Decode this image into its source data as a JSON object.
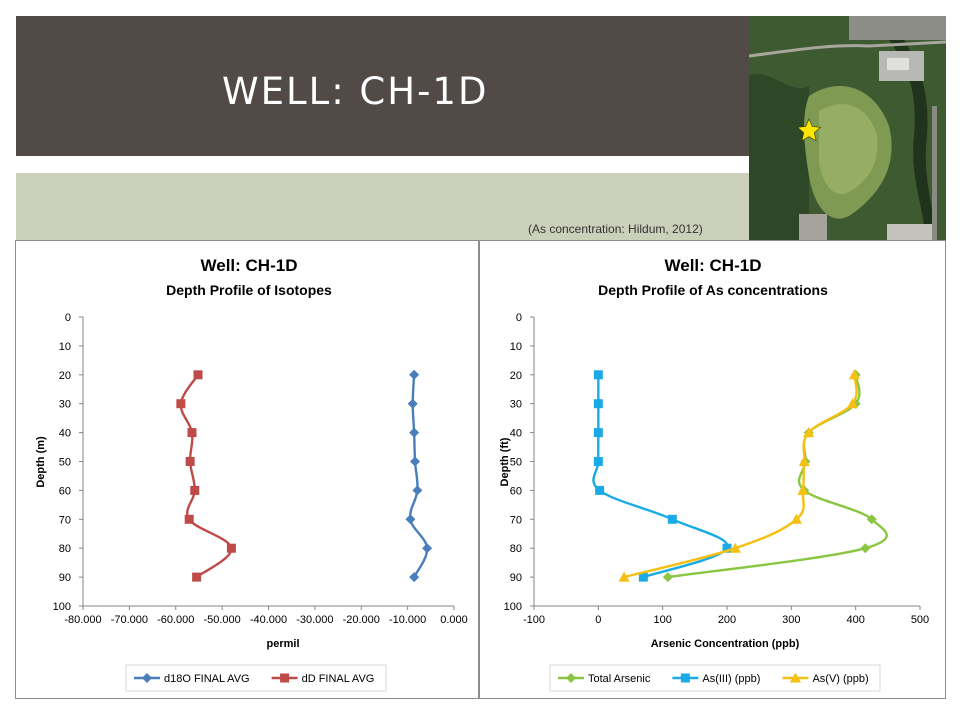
{
  "slide": {
    "title": "WELL: CH-1D",
    "citation": "(As concentration: Hildum, 2012)"
  },
  "colors": {
    "title_bar": "#514a47",
    "band": "#cbd0bb",
    "star": "#ffe600"
  },
  "map": {
    "icon": "star-icon"
  },
  "chart_data": [
    {
      "type": "line",
      "title": "Well: CH-1D",
      "subtitle": "Depth Profile of Isotopes",
      "xlabel": "permil",
      "ylabel": "Depth (m)",
      "xlim": [
        -80,
        0
      ],
      "ylim": [
        0,
        100
      ],
      "y_inverted": true,
      "x_ticks": [
        "-80.000",
        "-70.000",
        "-60.000",
        "-50.000",
        "-40.000",
        "-30.000",
        "-20.000",
        "-10.000",
        "0.000"
      ],
      "y_ticks": [
        "0",
        "10",
        "20",
        "30",
        "40",
        "50",
        "60",
        "70",
        "80",
        "90",
        "100"
      ],
      "legend_position": "bottom",
      "series": [
        {
          "name": "d18O FINAL AVG",
          "color": "#4a7ebb",
          "marker": "diamond",
          "points": [
            [
              -8.6,
              20
            ],
            [
              -8.9,
              30
            ],
            [
              -8.6,
              40
            ],
            [
              -8.4,
              50
            ],
            [
              -7.9,
              60
            ],
            [
              -9.4,
              70
            ],
            [
              -5.8,
              80
            ],
            [
              -8.6,
              90
            ]
          ]
        },
        {
          "name": "dD FINAL AVG",
          "color": "#be4b48",
          "marker": "square",
          "points": [
            [
              -55.2,
              20
            ],
            [
              -58.9,
              30
            ],
            [
              -56.5,
              40
            ],
            [
              -56.9,
              50
            ],
            [
              -55.9,
              60
            ],
            [
              -57.1,
              70
            ],
            [
              -48.0,
              80
            ],
            [
              -55.5,
              90
            ]
          ]
        }
      ]
    },
    {
      "type": "line",
      "title": "Well: CH-1D",
      "subtitle": "Depth Profile of As concentrations",
      "xlabel": "Arsenic Concentration (ppb)",
      "ylabel": "Depth (ft)",
      "xlim": [
        -100,
        500
      ],
      "ylim": [
        0,
        100
      ],
      "y_inverted": true,
      "x_ticks": [
        "-100",
        "0",
        "100",
        "200",
        "300",
        "400",
        "500"
      ],
      "y_ticks": [
        "0",
        "10",
        "20",
        "30",
        "40",
        "50",
        "60",
        "70",
        "80",
        "90",
        "100"
      ],
      "legend_position": "bottom",
      "series": [
        {
          "name": "Total Arsenic",
          "color": "#8ac641",
          "marker": "diamond",
          "points": [
            [
              400,
              20
            ],
            [
              400,
              30
            ],
            [
              327,
              40
            ],
            [
              322,
              50
            ],
            [
              320,
              60
            ],
            [
              425,
              70
            ],
            [
              415,
              80
            ],
            [
              108,
              90
            ]
          ]
        },
        {
          "name": "As(III) (ppb)",
          "color": "#1aabe6",
          "marker": "square",
          "points": [
            [
              0,
              20
            ],
            [
              0,
              30
            ],
            [
              0,
              40
            ],
            [
              0,
              50
            ],
            [
              2,
              60
            ],
            [
              115,
              70
            ],
            [
              200,
              80
            ],
            [
              70,
              90
            ]
          ]
        },
        {
          "name": "As(V) (ppb)",
          "color": "#f5c011",
          "marker": "triangle",
          "points": [
            [
              398,
              20
            ],
            [
              395,
              30
            ],
            [
              327,
              40
            ],
            [
              320,
              50
            ],
            [
              318,
              60
            ],
            [
              308,
              70
            ],
            [
              213,
              80
            ],
            [
              40,
              90
            ]
          ]
        }
      ]
    }
  ]
}
